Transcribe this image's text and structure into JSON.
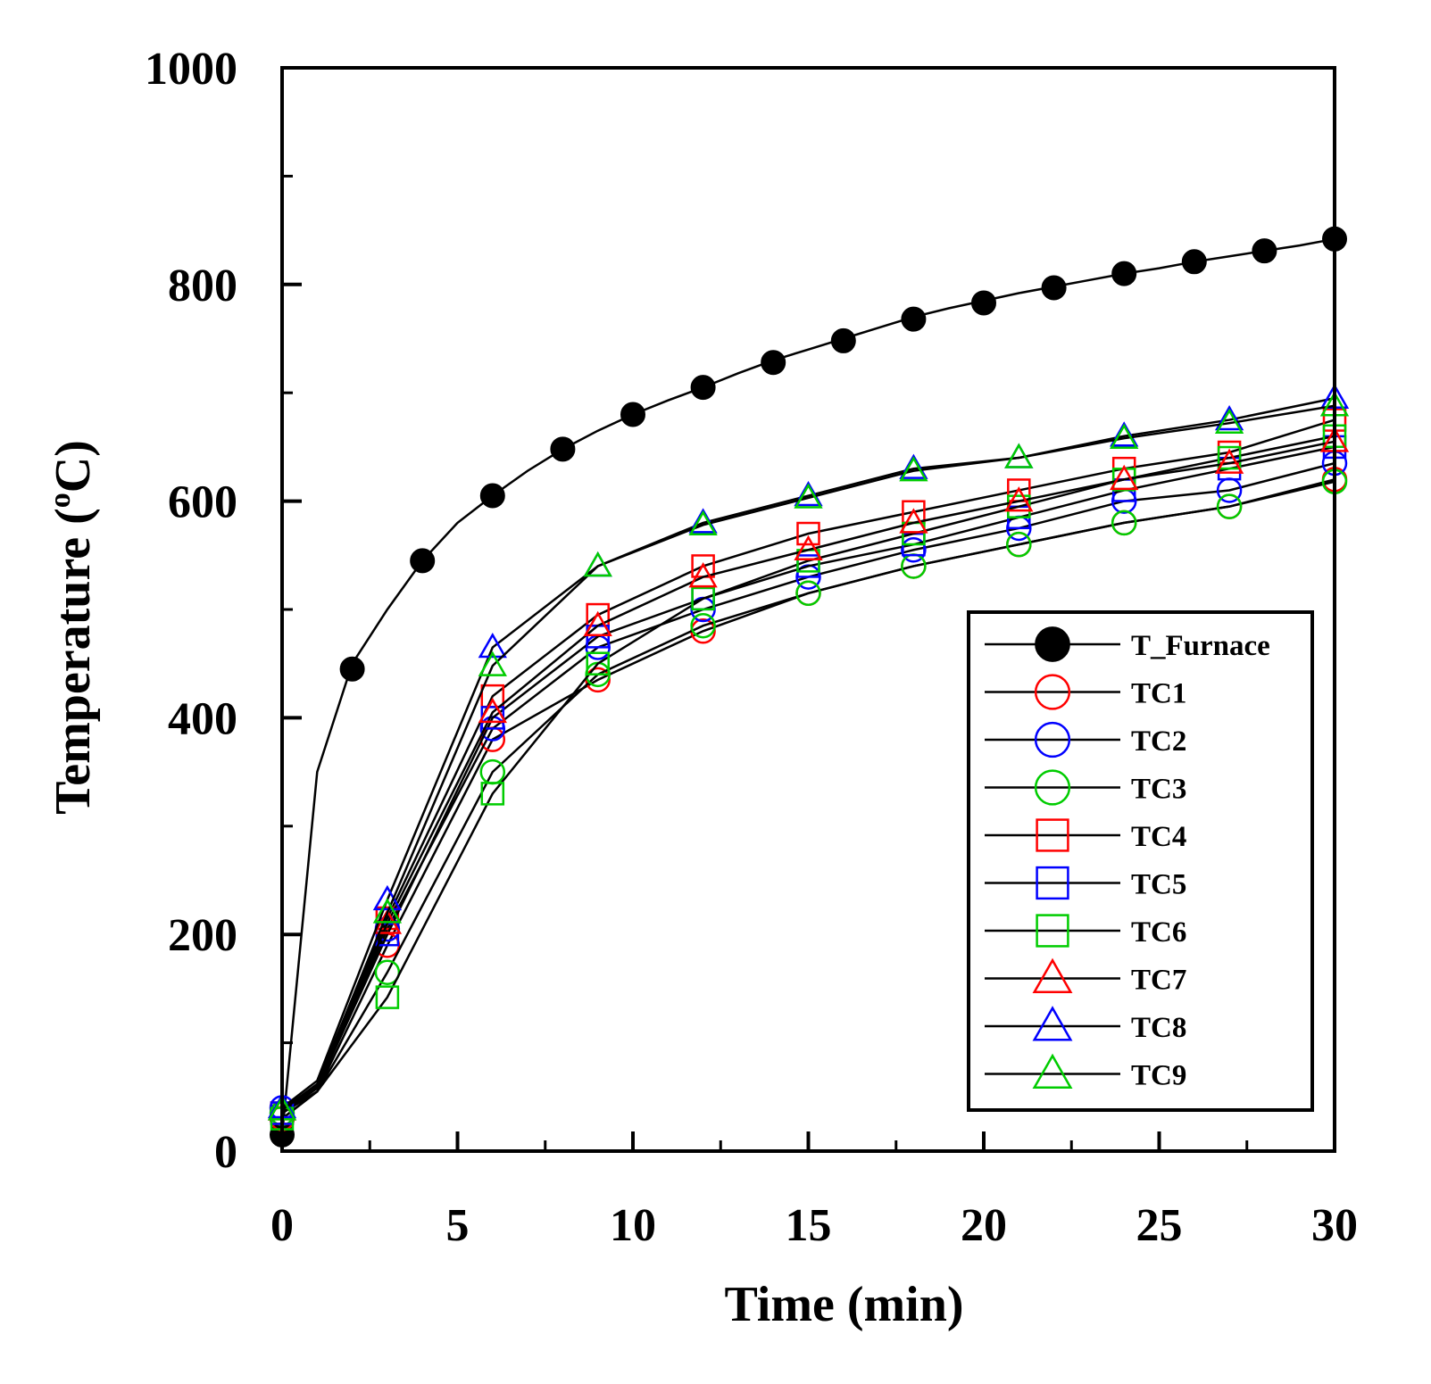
{
  "chart_data": {
    "type": "line",
    "xlabel": "Time (min)",
    "ylabel_main": "Temperature (",
    "ylabel_sup": "o",
    "ylabel_end": "C)",
    "xlim": [
      0,
      30
    ],
    "ylim": [
      0,
      1000
    ],
    "xticks": [
      0,
      5,
      10,
      15,
      20,
      25,
      30
    ],
    "yticks": [
      0,
      200,
      400,
      600,
      800,
      1000
    ],
    "grid": false,
    "legend_position": "bottom-right",
    "series": [
      {
        "name": "T_Furnace",
        "color": "#000000",
        "marker": "circle-filled",
        "lx": [
          0,
          1,
          2,
          3,
          4,
          5,
          6,
          7,
          8,
          9,
          10,
          11,
          12,
          13,
          14,
          15,
          16,
          17,
          18,
          19,
          20,
          21,
          22,
          23,
          24,
          25,
          26,
          27,
          28,
          29,
          30
        ],
        "ly": [
          15,
          350,
          450,
          500,
          545,
          580,
          605,
          628,
          648,
          665,
          680,
          693,
          705,
          718,
          730,
          740,
          750,
          760,
          770,
          778,
          785,
          792,
          798,
          804,
          810,
          815,
          821,
          826,
          831,
          836,
          842
        ],
        "mx": [
          0,
          2,
          4,
          6,
          8,
          10,
          12,
          14,
          16,
          18,
          20,
          22,
          24,
          26,
          28,
          30
        ],
        "my": [
          15,
          445,
          545,
          605,
          648,
          680,
          705,
          728,
          748,
          768,
          783,
          797,
          810,
          821,
          831,
          842
        ]
      },
      {
        "name": "TC1",
        "color": "#ff0000",
        "marker": "circle-open",
        "lx": [
          0,
          1,
          3,
          6,
          9,
          12,
          15,
          18,
          21,
          24,
          27,
          30
        ],
        "ly": [
          30,
          55,
          190,
          380,
          435,
          480,
          515,
          540,
          560,
          580,
          595,
          620
        ],
        "mx": [
          0,
          3,
          6,
          9,
          12,
          15,
          18,
          21,
          24,
          27,
          30
        ],
        "my": [
          30,
          190,
          380,
          435,
          480,
          515,
          540,
          560,
          580,
          595,
          620
        ]
      },
      {
        "name": "TC2",
        "color": "#0000ff",
        "marker": "circle-open",
        "lx": [
          0,
          1,
          3,
          6,
          9,
          12,
          15,
          18,
          21,
          24,
          27,
          30
        ],
        "ly": [
          40,
          60,
          205,
          390,
          465,
          500,
          530,
          555,
          575,
          600,
          610,
          635
        ],
        "mx": [
          0,
          3,
          6,
          9,
          12,
          15,
          18,
          21,
          24,
          27,
          30
        ],
        "my": [
          40,
          205,
          390,
          465,
          500,
          530,
          555,
          575,
          600,
          610,
          635
        ]
      },
      {
        "name": "TC3",
        "color": "#00cc00",
        "marker": "circle-open",
        "lx": [
          0,
          1,
          3,
          6,
          9,
          12,
          15,
          18,
          21,
          24,
          27,
          30
        ],
        "ly": [
          35,
          55,
          165,
          350,
          440,
          485,
          515,
          540,
          560,
          580,
          595,
          618
        ],
        "mx": [
          0,
          3,
          6,
          9,
          12,
          15,
          18,
          21,
          24,
          27,
          30
        ],
        "my": [
          35,
          165,
          350,
          440,
          485,
          515,
          540,
          560,
          580,
          595,
          618
        ]
      },
      {
        "name": "TC4",
        "color": "#ff0000",
        "marker": "square-open",
        "lx": [
          0,
          1,
          3,
          6,
          9,
          12,
          15,
          18,
          21,
          24,
          27,
          30
        ],
        "ly": [
          35,
          60,
          215,
          420,
          495,
          540,
          570,
          590,
          610,
          630,
          645,
          675
        ],
        "mx": [
          0,
          3,
          6,
          9,
          12,
          15,
          18,
          21,
          24,
          27,
          30
        ],
        "my": [
          35,
          215,
          420,
          495,
          540,
          570,
          590,
          610,
          630,
          645,
          675
        ]
      },
      {
        "name": "TC5",
        "color": "#0000ff",
        "marker": "square-open",
        "lx": [
          0,
          1,
          3,
          6,
          9,
          12,
          15,
          18,
          21,
          24,
          27,
          30
        ],
        "ly": [
          35,
          58,
          200,
          400,
          475,
          510,
          540,
          560,
          585,
          610,
          630,
          650
        ],
        "mx": [
          0,
          3,
          6,
          9,
          12,
          15,
          18,
          21,
          24,
          27,
          30
        ],
        "my": [
          35,
          200,
          400,
          475,
          510,
          540,
          560,
          585,
          610,
          630,
          650
        ]
      },
      {
        "name": "TC6",
        "color": "#00cc00",
        "marker": "square-open",
        "lx": [
          0,
          1,
          3,
          6,
          9,
          12,
          15,
          18,
          21,
          24,
          27,
          30
        ],
        "ly": [
          30,
          55,
          142,
          330,
          450,
          510,
          545,
          570,
          595,
          620,
          640,
          660
        ],
        "mx": [
          0,
          3,
          6,
          9,
          12,
          15,
          18,
          21,
          24,
          27,
          30
        ],
        "my": [
          30,
          142,
          330,
          450,
          510,
          545,
          570,
          595,
          620,
          640,
          660
        ]
      },
      {
        "name": "TC7",
        "color": "#ff0000",
        "marker": "triangle-open",
        "lx": [
          0,
          1,
          3,
          6,
          9,
          12,
          15,
          18,
          21,
          24,
          27,
          30
        ],
        "ly": [
          38,
          60,
          210,
          405,
          485,
          530,
          555,
          580,
          600,
          620,
          635,
          655
        ],
        "mx": [
          0,
          3,
          6,
          9,
          12,
          15,
          18,
          21,
          24,
          27,
          30
        ],
        "my": [
          38,
          210,
          405,
          485,
          530,
          555,
          580,
          600,
          620,
          635,
          655
        ]
      },
      {
        "name": "TC8",
        "color": "#0000ff",
        "marker": "triangle-open",
        "lx": [
          0,
          1,
          3,
          6,
          9,
          12,
          15,
          18,
          21,
          24,
          27,
          30
        ],
        "ly": [
          40,
          65,
          232,
          465,
          540,
          580,
          605,
          630,
          640,
          660,
          675,
          695
        ],
        "mx": [
          0,
          3,
          6,
          9,
          12,
          15,
          18,
          21,
          24,
          27,
          30
        ],
        "my": [
          40,
          232,
          465,
          540,
          580,
          605,
          630,
          640,
          660,
          675,
          695
        ]
      },
      {
        "name": "TC9",
        "color": "#00cc00",
        "marker": "triangle-open",
        "lx": [
          0,
          1,
          3,
          6,
          9,
          12,
          15,
          18,
          21,
          24,
          27,
          30
        ],
        "ly": [
          38,
          62,
          220,
          448,
          540,
          578,
          603,
          628,
          640,
          658,
          672,
          688
        ],
        "mx": [
          0,
          3,
          6,
          9,
          12,
          15,
          18,
          21,
          24,
          27,
          30
        ],
        "my": [
          38,
          220,
          448,
          540,
          578,
          603,
          628,
          640,
          658,
          672,
          688
        ]
      }
    ]
  }
}
